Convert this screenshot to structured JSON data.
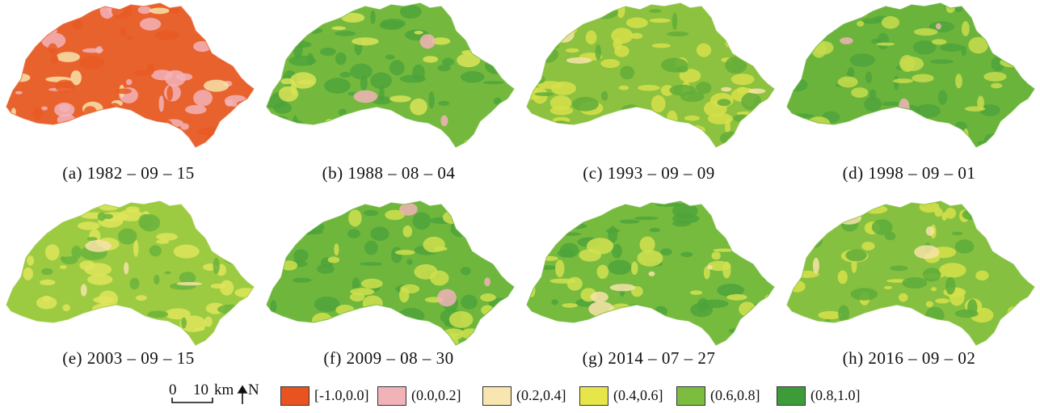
{
  "panels": [
    {
      "caption": "(a) 1982 – 09 – 15",
      "base": "#e8622e",
      "patches": [
        [
          "#f2b3b8",
          0.35
        ],
        [
          "#f7e3a8",
          0.12
        ],
        [
          "#e85a22",
          0.2
        ]
      ]
    },
    {
      "caption": "(b) 1988 – 08 – 04",
      "base": "#74b93e",
      "patches": [
        [
          "#4ea33b",
          0.35
        ],
        [
          "#d9e357",
          0.22
        ],
        [
          "#f2b3b8",
          0.03
        ]
      ]
    },
    {
      "caption": "(c) 1993 – 09 – 09",
      "base": "#8cc23f",
      "patches": [
        [
          "#d6e04a",
          0.35
        ],
        [
          "#62ad3a",
          0.22
        ],
        [
          "#f7e3a8",
          0.04
        ]
      ]
    },
    {
      "caption": "(d) 1998 – 09 – 01",
      "base": "#6bb43c",
      "patches": [
        [
          "#4ea33b",
          0.3
        ],
        [
          "#c8dc4c",
          0.28
        ],
        [
          "#f2b3b8",
          0.03
        ]
      ]
    },
    {
      "caption": "(e) 2003 – 09 – 15",
      "base": "#9ccb42",
      "patches": [
        [
          "#dfe55a",
          0.4
        ],
        [
          "#6bb43c",
          0.18
        ],
        [
          "#f7e3a8",
          0.05
        ]
      ]
    },
    {
      "caption": "(f) 2009 – 08 – 30",
      "base": "#6fb63d",
      "patches": [
        [
          "#4ea33b",
          0.3
        ],
        [
          "#cfe04e",
          0.28
        ],
        [
          "#f2b3b8",
          0.04
        ]
      ]
    },
    {
      "caption": "(g) 2014 – 07 – 27",
      "base": "#76ba3e",
      "patches": [
        [
          "#4ea33b",
          0.35
        ],
        [
          "#d2e150",
          0.25
        ],
        [
          "#f7e3a8",
          0.04
        ]
      ]
    },
    {
      "caption": "(h) 2016 – 09 – 02",
      "base": "#86c040",
      "patches": [
        [
          "#d6e04a",
          0.32
        ],
        [
          "#5dab3b",
          0.25
        ],
        [
          "#f7e3a8",
          0.05
        ]
      ]
    }
  ],
  "scale_bar": {
    "zero": "0",
    "distance": "10",
    "unit": "km",
    "north": "N"
  },
  "legend": [
    {
      "label": "[-1.0,0.0]",
      "color": "#e8531f"
    },
    {
      "label": "(0.0,0.2]",
      "color": "#f2b3b8"
    },
    {
      "label": "(0.2,0.4]",
      "color": "#f8e5b0"
    },
    {
      "label": "(0.4,0.6]",
      "color": "#e6e64a"
    },
    {
      "label": "(0.6,0.8]",
      "color": "#7cbc3e"
    },
    {
      "label": "(0.8,1.0]",
      "color": "#3e9b3a"
    }
  ]
}
